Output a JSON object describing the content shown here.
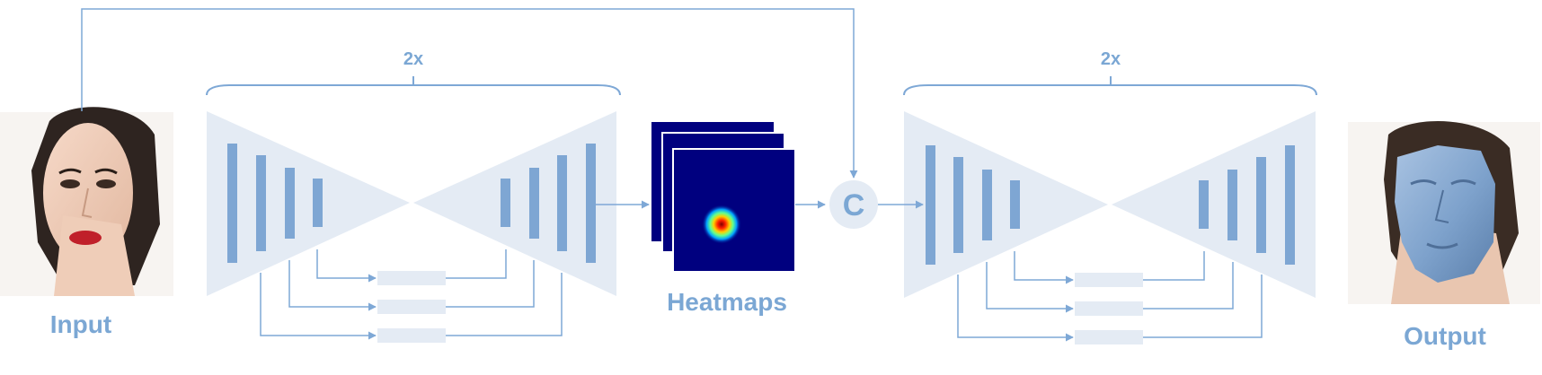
{
  "labels": {
    "input": "Input",
    "heatmaps": "Heatmaps",
    "output": "Output",
    "concat": "C",
    "repeat_left": "2x",
    "repeat_right": "2x"
  },
  "colors": {
    "line": "#7ea8d6",
    "block": "#e4ebf4",
    "bar": "#7ea6d3",
    "text": "#7ba7d4",
    "heatmap_bg": "#00007f",
    "mesh": "#7ea2cc"
  },
  "icons": {
    "input_photo": "face-photo-icon",
    "output_photo": "face-mesh-overlay-icon",
    "heatmap": "heatmap-stack-icon"
  }
}
